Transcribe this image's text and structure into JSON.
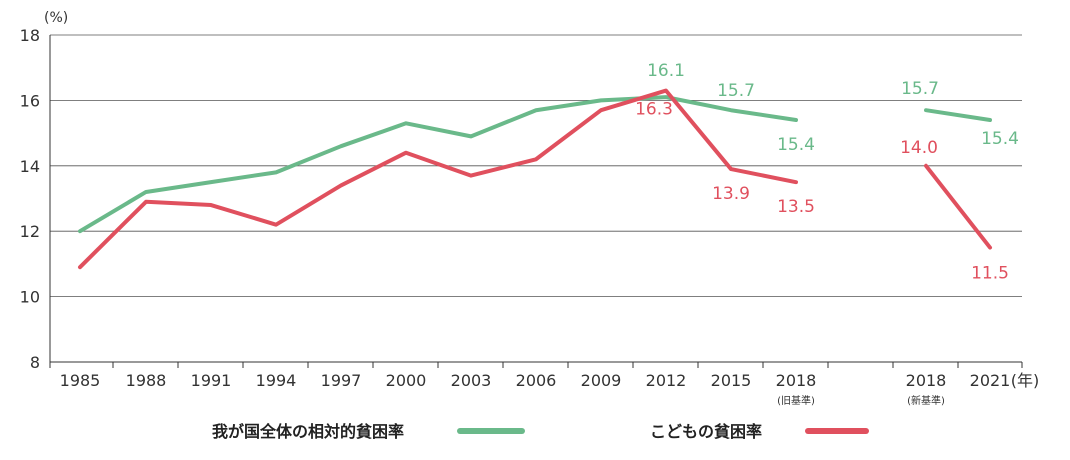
{
  "chart_data": {
    "type": "line",
    "y_unit": "(%)",
    "x_unit": "(年)",
    "ylim": [
      8,
      18
    ],
    "yticks": [
      8,
      10,
      12,
      14,
      16,
      18
    ],
    "grid": true,
    "legend_position": "bottom",
    "categories": [
      "1985",
      "1988",
      "1991",
      "1994",
      "1997",
      "2000",
      "2003",
      "2006",
      "2009",
      "2012",
      "2015",
      "2018",
      "2018",
      "2021"
    ],
    "category_sublabels": [
      "",
      "",
      "",
      "",
      "",
      "",
      "",
      "",
      "",
      "",
      "",
      "(旧基準)",
      "(新基準)",
      ""
    ],
    "colors": {
      "overall": "#6ab98a",
      "children": "#e0505e",
      "grid": "#555555"
    },
    "series": [
      {
        "name": "我が国全体の相対的貧困率",
        "color_key": "overall",
        "segments": [
          {
            "points": [
              [
                0,
                12.0
              ],
              [
                1,
                13.2
              ],
              [
                2,
                13.5
              ],
              [
                3,
                13.8
              ],
              [
                4,
                14.6
              ],
              [
                5,
                15.3
              ],
              [
                6,
                14.9
              ],
              [
                7,
                15.7
              ],
              [
                8,
                16.0
              ],
              [
                9,
                16.1
              ],
              [
                10,
                15.7
              ],
              [
                11,
                15.4
              ]
            ]
          },
          {
            "points": [
              [
                12,
                15.7
              ],
              [
                13,
                15.4
              ]
            ]
          }
        ],
        "data_labels": [
          {
            "index": 9,
            "value": 16.1,
            "text": "16.1"
          },
          {
            "index": 10,
            "value": 15.7,
            "text": "15.7"
          },
          {
            "index": 11,
            "value": 15.4,
            "text": "15.4"
          },
          {
            "index": 12,
            "value": 15.7,
            "text": "15.7"
          },
          {
            "index": 13,
            "value": 15.4,
            "text": "15.4"
          }
        ]
      },
      {
        "name": "こどもの貧困率",
        "color_key": "children",
        "segments": [
          {
            "points": [
              [
                0,
                10.9
              ],
              [
                1,
                12.9
              ],
              [
                2,
                12.8
              ],
              [
                3,
                12.2
              ],
              [
                4,
                13.4
              ],
              [
                5,
                14.4
              ],
              [
                6,
                13.7
              ],
              [
                7,
                14.2
              ],
              [
                8,
                15.7
              ],
              [
                9,
                16.3
              ],
              [
                10,
                13.9
              ],
              [
                11,
                13.5
              ]
            ]
          },
          {
            "points": [
              [
                12,
                14.0
              ],
              [
                13,
                11.5
              ]
            ]
          }
        ],
        "data_labels": [
          {
            "index": 9,
            "value": 16.3,
            "text": "16.3"
          },
          {
            "index": 10,
            "value": 13.9,
            "text": "13.9"
          },
          {
            "index": 11,
            "value": 13.5,
            "text": "13.5"
          },
          {
            "index": 12,
            "value": 14.0,
            "text": "14.0"
          },
          {
            "index": 13,
            "value": 11.5,
            "text": "11.5"
          }
        ]
      }
    ]
  },
  "legend": {
    "overall_label": "我が国全体の相対的貧困率",
    "children_label": "こどもの貧困率"
  }
}
